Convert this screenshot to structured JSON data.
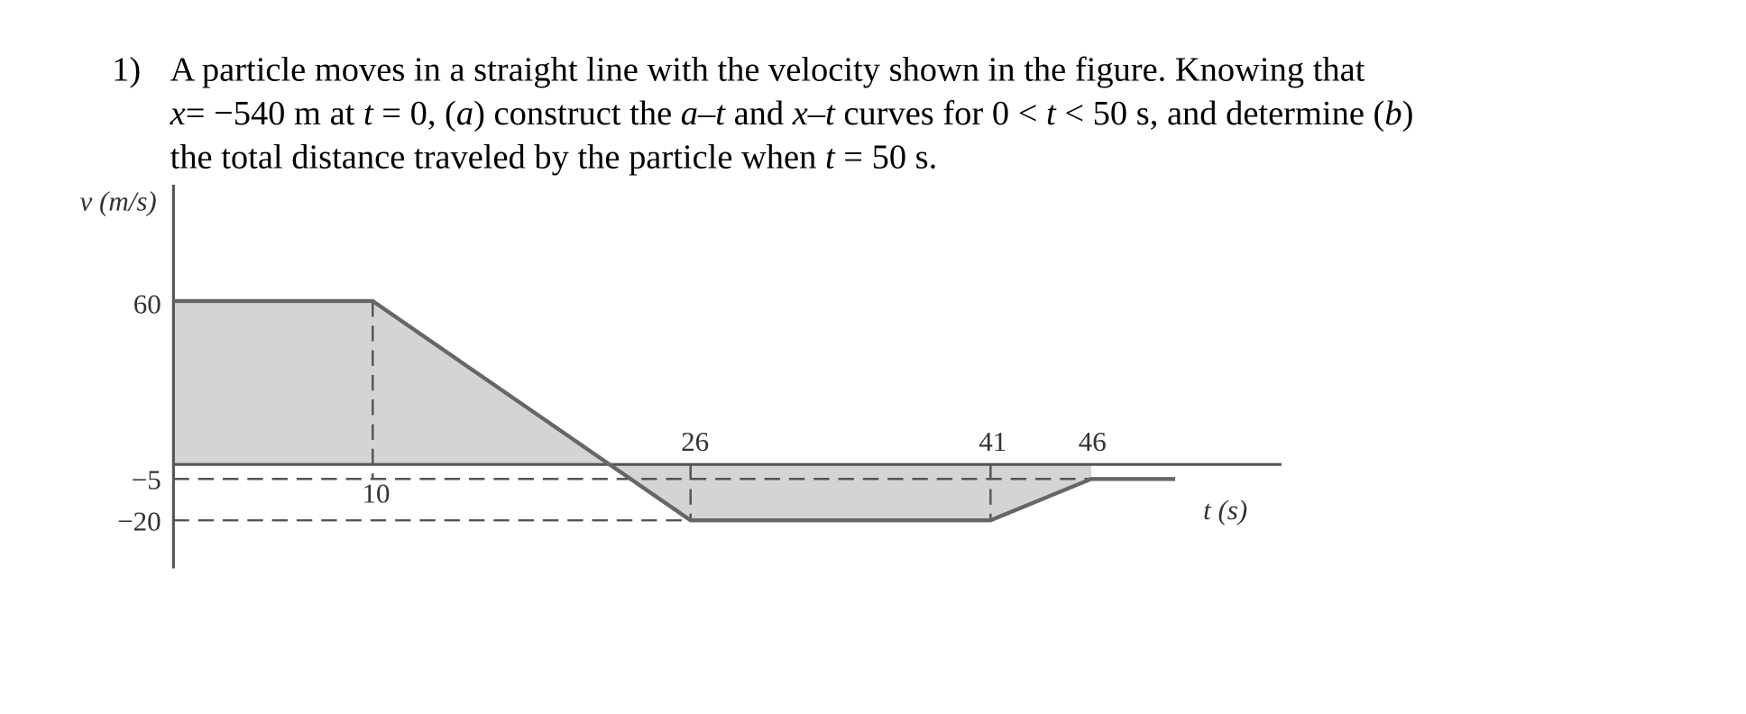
{
  "problem": {
    "number": "1)",
    "lines": [
      [
        {
          "text": "A particle moves in a straight line with the velocity shown in the figure. Knowing that",
          "italic": false
        }
      ],
      [
        {
          "text": "x",
          "italic": true
        },
        {
          "text": "= −540 m at ",
          "italic": false
        },
        {
          "text": "t",
          "italic": true
        },
        {
          "text": " = 0, (",
          "italic": false
        },
        {
          "text": "a",
          "italic": true
        },
        {
          "text": ") construct the ",
          "italic": false
        },
        {
          "text": "a–t",
          "italic": true
        },
        {
          "text": " and ",
          "italic": false
        },
        {
          "text": "x–t",
          "italic": true
        },
        {
          "text": " curves for 0 < ",
          "italic": false
        },
        {
          "text": "t",
          "italic": true
        },
        {
          "text": " < 50 s, and determine (",
          "italic": false
        },
        {
          "text": "b",
          "italic": true
        },
        {
          "text": ")",
          "italic": false
        }
      ],
      [
        {
          "text": "the total distance traveled by the particle when ",
          "italic": false
        },
        {
          "text": "t",
          "italic": true
        },
        {
          "text": " = 50 s.",
          "italic": false
        }
      ]
    ]
  },
  "figure": {
    "y_axis_label": "v (m/s)",
    "x_axis_label": "t (s)",
    "y_labels": [
      "60",
      "−5",
      "−20"
    ],
    "x_labels": [
      "10",
      "26",
      "41",
      "46"
    ]
  }
}
